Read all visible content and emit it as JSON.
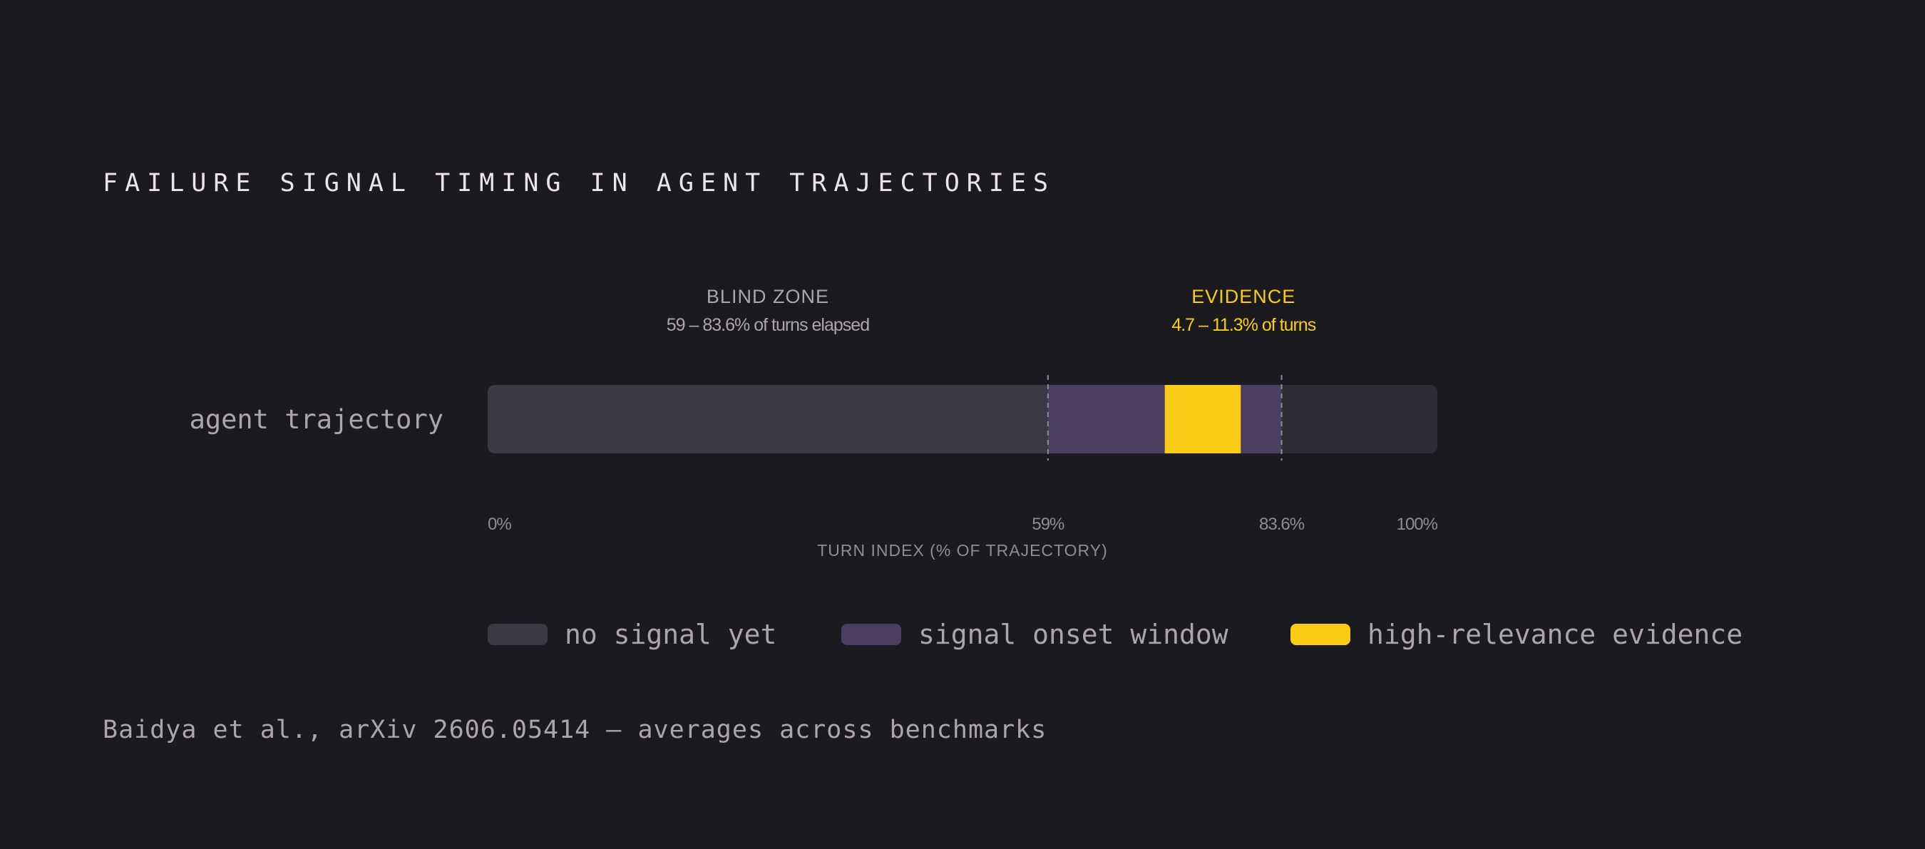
{
  "title": "FAILURE SIGNAL TIMING IN AGENT TRAJECTORIES",
  "source": "Baidya et al., arXiv 2606.05414 — averages across benchmarks",
  "colors": {
    "background": "#1b1a1f",
    "no_signal": "#3b3942",
    "signal_onset": "#4a3f5f",
    "evidence": "#facc15",
    "after": "#2e2d33",
    "muted_text": "#a9a6ad"
  },
  "chart_data": {
    "type": "bar",
    "orientation": "horizontal",
    "categories": [
      "agent trajectory"
    ],
    "xlabel": "TURN INDEX (% OF TRAJECTORY)",
    "xlim": [
      0,
      100
    ],
    "x_ticks": [
      {
        "value": 0,
        "label": "0%"
      },
      {
        "value": 59,
        "label": "59%"
      },
      {
        "value": 83.6,
        "label": "83.6%"
      },
      {
        "value": 100,
        "label": "100%"
      }
    ],
    "segments": [
      {
        "series": "no signal yet",
        "start": 0,
        "end": 59
      },
      {
        "series": "signal onset window",
        "start": 59,
        "end": 71.3
      },
      {
        "series": "high-relevance evidence",
        "start": 71.3,
        "end": 79.3
      },
      {
        "series": "signal onset window",
        "start": 79.3,
        "end": 83.6
      },
      {
        "series": "",
        "start": 83.6,
        "end": 100
      }
    ],
    "markers": [
      59,
      83.6
    ],
    "annotations": [
      {
        "heading": "BLIND ZONE",
        "detail": "59 – 83.6% of turns elapsed",
        "x": 29.5
      },
      {
        "heading": "EVIDENCE",
        "detail": "4.7 – 11.3% of turns",
        "x": 79.6
      }
    ],
    "legend": [
      "no signal yet",
      "signal onset window",
      "high-relevance evidence"
    ],
    "legend_position": "bottom"
  }
}
